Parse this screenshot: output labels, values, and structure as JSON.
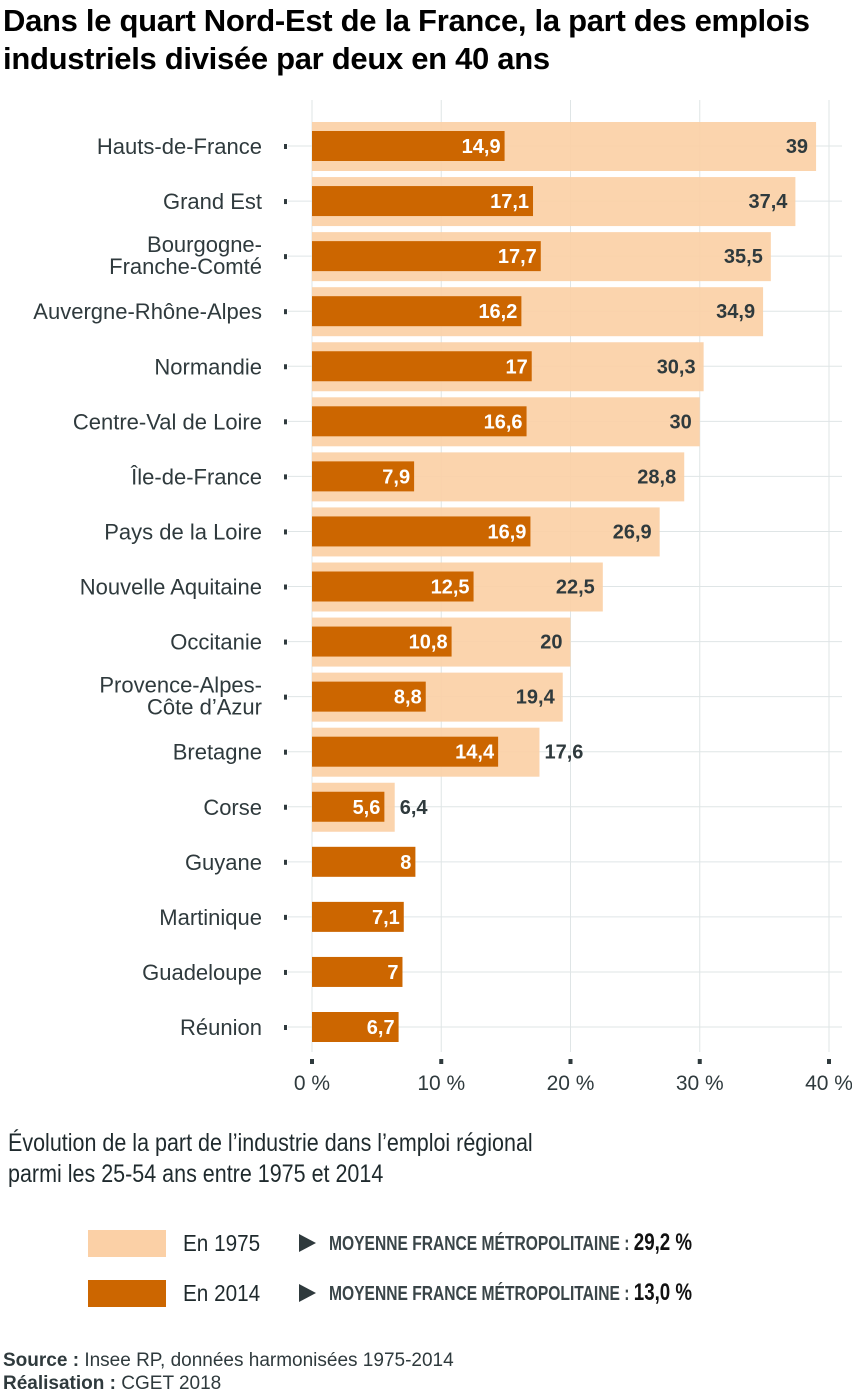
{
  "title": "Dans le quart Nord-Est de la France, la part des emplois industriels divisée par deux en 40 ans",
  "subtitle_line1": "Évolution de la part de l’industrie dans l’emploi régional",
  "subtitle_line2": "parmi les 25-54 ans entre 1975 et 2014",
  "colors": {
    "y1975": "#fbd0a6",
    "y2014": "#cc6600",
    "text": "#2f3a3d",
    "grid": "#dfe5e6"
  },
  "legend": [
    {
      "label": "En 1975",
      "avg_label": "MOYENNE FRANCE MÉTROPOLITAINE :",
      "avg_value": "29,2 %"
    },
    {
      "label": "En 2014",
      "avg_label": "MOYENNE FRANCE MÉTROPOLITAINE :",
      "avg_value": "13,0 %"
    }
  ],
  "footer": {
    "source_label": "Source :",
    "source_text": "Insee RP, données harmonisées 1975-2014",
    "credit_label": "Réalisation :",
    "credit_text": "CGET 2018"
  },
  "chart_data": {
    "type": "bar",
    "orientation": "horizontal",
    "title": "Dans le quart Nord-Est de la France, la part des emplois industriels divisée par deux en 40 ans",
    "xlabel": "",
    "ylabel": "",
    "xlim": [
      0,
      40
    ],
    "x_ticks": [
      0,
      10,
      20,
      30,
      40
    ],
    "x_tick_labels": [
      "0 %",
      "10 %",
      "20 %",
      "30 %",
      "40 %"
    ],
    "grid": true,
    "legend_position": "bottom",
    "categories": [
      [
        "Hauts-de-France"
      ],
      [
        "Grand Est"
      ],
      [
        "Bourgogne-",
        "Franche-Comté"
      ],
      [
        "Auvergne-Rhône-Alpes"
      ],
      [
        "Normandie"
      ],
      [
        "Centre-Val de Loire"
      ],
      [
        "Île-de-France"
      ],
      [
        "Pays de la Loire"
      ],
      [
        "Nouvelle Aquitaine"
      ],
      [
        "Occitanie"
      ],
      [
        "Provence-Alpes-",
        "Côte d’Azur"
      ],
      [
        "Bretagne"
      ],
      [
        "Corse"
      ],
      [
        "Guyane"
      ],
      [
        "Martinique"
      ],
      [
        "Guadeloupe"
      ],
      [
        "Réunion"
      ]
    ],
    "series": [
      {
        "name": "En 1975",
        "values": [
          39,
          37.4,
          35.5,
          34.9,
          30.3,
          30,
          28.8,
          26.9,
          22.5,
          20,
          19.4,
          17.6,
          6.4,
          null,
          null,
          null,
          null
        ],
        "labels": [
          "39",
          "37,4",
          "35,5",
          "34,9",
          "30,3",
          "30",
          "28,8",
          "26,9",
          "22,5",
          "20",
          "19,4",
          "17,6",
          "6,4",
          "",
          "",
          "",
          ""
        ]
      },
      {
        "name": "En 2014",
        "values": [
          14.9,
          17.1,
          17.7,
          16.2,
          17,
          16.6,
          7.9,
          16.9,
          12.5,
          10.8,
          8.8,
          14.4,
          5.6,
          8,
          7.1,
          7,
          6.7
        ],
        "labels": [
          "14,9",
          "17,1",
          "17,7",
          "16,2",
          "17",
          "16,6",
          "7,9",
          "16,9",
          "12,5",
          "10,8",
          "8,8",
          "14,4",
          "5,6",
          "8",
          "7,1",
          "7",
          "6,7"
        ]
      }
    ]
  }
}
